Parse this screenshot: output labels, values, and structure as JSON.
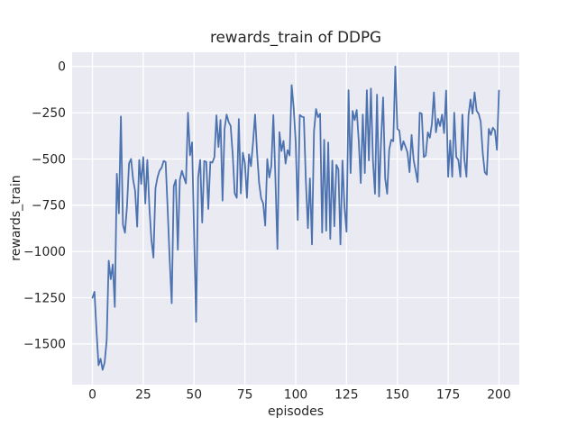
{
  "chart_data": {
    "type": "line",
    "title": "rewards_train of DDPG",
    "xlabel": "episodes",
    "ylabel": "rewards_train",
    "legend": "none",
    "grid": true,
    "style": "seaborn-darkgrid",
    "axes_background": "#eaeaf2",
    "grid_color": "#ffffff",
    "line_color": "#4c72b0",
    "text_color": "#262626",
    "xlim": [
      -10,
      210
    ],
    "ylim": [
      -1720,
      77
    ],
    "x_ticks": [
      0,
      25,
      50,
      75,
      100,
      125,
      150,
      175,
      200
    ],
    "y_ticks": [
      0,
      -250,
      -500,
      -750,
      -1000,
      -1250,
      -1500
    ],
    "x_start": 0,
    "x_step": 1,
    "series_name": "rewards_train",
    "values": [
      -1250,
      -1218,
      -1430,
      -1615,
      -1580,
      -1640,
      -1600,
      -1480,
      -1050,
      -1150,
      -1070,
      -1300,
      -580,
      -794,
      -270,
      -855,
      -899,
      -755,
      -524,
      -500,
      -611,
      -673,
      -866,
      -505,
      -635,
      -490,
      -741,
      -505,
      -760,
      -936,
      -1033,
      -658,
      -600,
      -563,
      -548,
      -511,
      -516,
      -770,
      -1047,
      -1280,
      -647,
      -613,
      -991,
      -613,
      -564,
      -600,
      -632,
      -250,
      -480,
      -410,
      -900,
      -1380,
      -600,
      -505,
      -844,
      -511,
      -516,
      -770,
      -516,
      -520,
      -490,
      -264,
      -435,
      -289,
      -725,
      -337,
      -260,
      -300,
      -322,
      -475,
      -686,
      -710,
      -284,
      -686,
      -466,
      -524,
      -710,
      -475,
      -539,
      -411,
      -260,
      -469,
      -630,
      -713,
      -740,
      -860,
      -500,
      -600,
      -539,
      -262,
      -600,
      -987,
      -355,
      -457,
      -403,
      -525,
      -452,
      -481,
      -101,
      -223,
      -408,
      -830,
      -262,
      -271,
      -274,
      -620,
      -874,
      -605,
      -962,
      -350,
      -230,
      -274,
      -255,
      -898,
      -396,
      -888,
      -411,
      -932,
      -508,
      -864,
      -532,
      -556,
      -962,
      -508,
      -761,
      -893,
      -128,
      -576,
      -240,
      -290,
      -235,
      -400,
      -630,
      -260,
      -576,
      -128,
      -508,
      -119,
      -508,
      -688,
      -152,
      -703,
      -400,
      -167,
      -605,
      -688,
      -450,
      -396,
      -404,
      0,
      -337,
      -347,
      -452,
      -404,
      -433,
      -466,
      -571,
      -370,
      -505,
      -563,
      -625,
      -250,
      -255,
      -490,
      -481,
      -356,
      -385,
      -310,
      -140,
      -356,
      -283,
      -322,
      -260,
      -360,
      -130,
      -596,
      -400,
      -596,
      -250,
      -490,
      -505,
      -596,
      -260,
      -505,
      -596,
      -264,
      -178,
      -255,
      -140,
      -240,
      -255,
      -298,
      -466,
      -571,
      -585,
      -337,
      -370,
      -331,
      -346,
      -450,
      -130
    ]
  }
}
